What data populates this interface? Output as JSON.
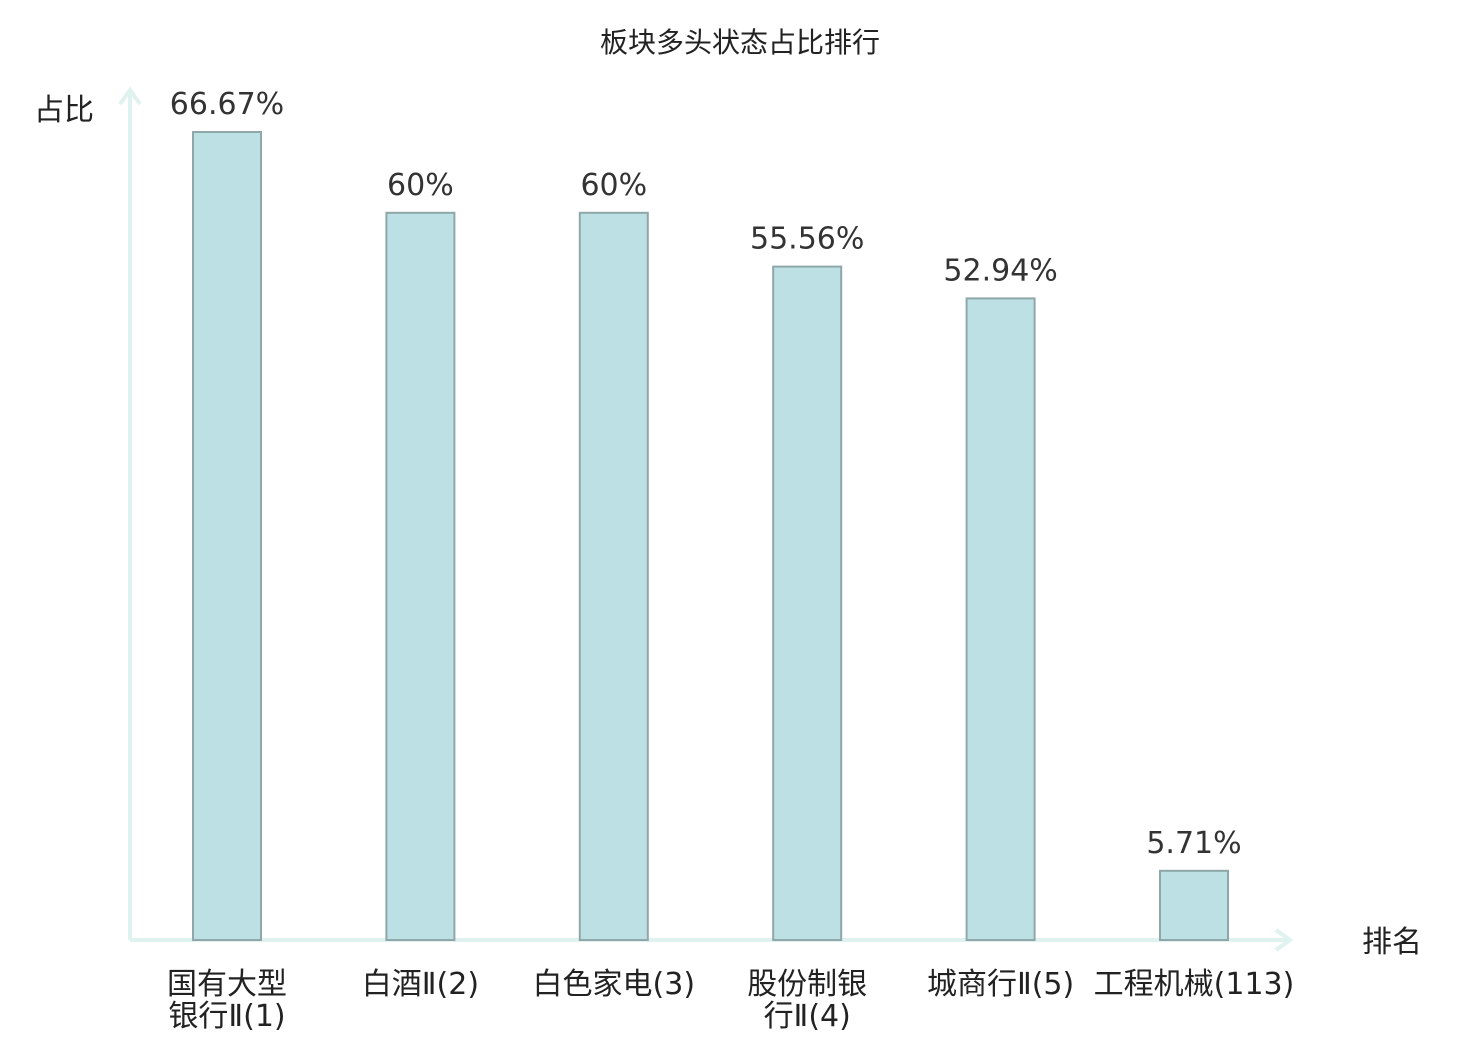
{
  "chart_data": {
    "type": "bar",
    "title": "板块多头状态占比排行",
    "ylabel": "占比",
    "xlabel": "排名",
    "ylim": [
      0,
      70
    ],
    "grid": false,
    "legend": "none",
    "categories": [
      "国有大型银行Ⅱ(1)",
      "白酒Ⅱ(2)",
      "白色家电(3)",
      "股份制银行Ⅱ(4)",
      "城商行Ⅱ(5)",
      "工程机械(113)"
    ],
    "category_lines": [
      [
        "国有大型",
        "银行Ⅱ(1)"
      ],
      [
        "白酒Ⅱ(2)"
      ],
      [
        "白色家电(3)"
      ],
      [
        "股份制银",
        "行Ⅱ(4)"
      ],
      [
        "城商行Ⅱ(5)"
      ],
      [
        "工程机械(113)"
      ]
    ],
    "values": [
      66.67,
      60,
      60,
      55.56,
      52.94,
      5.71
    ],
    "value_labels": [
      "66.67%",
      "60%",
      "60%",
      "55.56%",
      "52.94%",
      "5.71%"
    ],
    "highlight_index": 5,
    "colors": {
      "bar_fill": "#bce0e3",
      "bar_stroke": "#8fa7a8",
      "axis": "#e0f2ef",
      "highlight_label": "#e0181b",
      "text": "#222222",
      "value_text": "#333333"
    }
  }
}
